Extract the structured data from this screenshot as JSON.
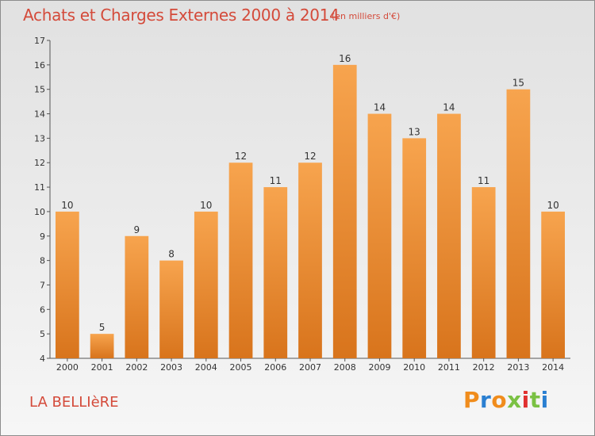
{
  "chart_data": {
    "type": "bar",
    "title": "Achats et Charges Externes 2000 à 2014",
    "subtitle": "(en milliers d'€)",
    "categories": [
      "2000",
      "2001",
      "2002",
      "2003",
      "2004",
      "2005",
      "2006",
      "2007",
      "2008",
      "2009",
      "2010",
      "2011",
      "2012",
      "2013",
      "2014"
    ],
    "values": [
      10,
      5,
      9,
      8,
      10,
      12,
      11,
      12,
      16,
      14,
      13,
      14,
      11,
      15,
      10
    ],
    "ylim": [
      4,
      17
    ],
    "yticks": [
      4,
      5,
      6,
      7,
      8,
      9,
      10,
      11,
      12,
      13,
      14,
      15,
      16,
      17
    ],
    "xlabel": "",
    "ylabel": "",
    "grid": false,
    "bar_color_top": "#f7a44e",
    "bar_color_bottom": "#d8741c"
  },
  "footer": {
    "commune": "LA BELLIèRE",
    "brand": "Proxiti",
    "brand_colors": [
      "#f08c1c",
      "#2a7fd1",
      "#f08c1c",
      "#7ac143",
      "#e0302f",
      "#7ac143",
      "#2a7fd1"
    ]
  }
}
